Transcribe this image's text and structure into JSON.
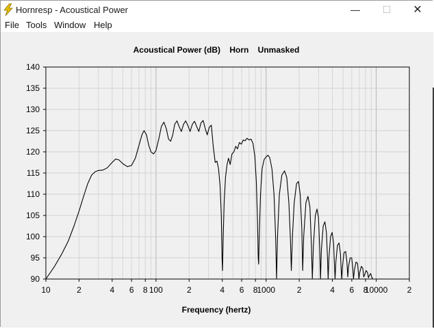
{
  "window": {
    "title": "Hornresp - Acoustical Power",
    "controls": {
      "minimize": "—",
      "maximize": "☐",
      "close": "✕"
    }
  },
  "menu": [
    "File",
    "Tools",
    "Window",
    "Help"
  ],
  "chart_data": {
    "type": "line",
    "title": "Acoustical Power (dB)    Horn    Unmasked",
    "xlabel": "Frequency (hertz)",
    "ylabel": "",
    "x_scale": "log",
    "xlim": [
      10,
      20000
    ],
    "ylim": [
      90,
      140
    ],
    "y_ticks": [
      90,
      95,
      100,
      105,
      110,
      115,
      120,
      125,
      130,
      135,
      140
    ],
    "x_tick_labels": [
      {
        "x": 10,
        "label": "10"
      },
      {
        "x": 20,
        "label": "2"
      },
      {
        "x": 40,
        "label": "4"
      },
      {
        "x": 60,
        "label": "6"
      },
      {
        "x": 80,
        "label": "8"
      },
      {
        "x": 100,
        "label": "100"
      },
      {
        "x": 200,
        "label": "2"
      },
      {
        "x": 400,
        "label": "4"
      },
      {
        "x": 600,
        "label": "6"
      },
      {
        "x": 800,
        "label": "8"
      },
      {
        "x": 1000,
        "label": "1000"
      },
      {
        "x": 2000,
        "label": "2"
      },
      {
        "x": 4000,
        "label": "4"
      },
      {
        "x": 6000,
        "label": "6"
      },
      {
        "x": 8000,
        "label": "8"
      },
      {
        "x": 10000,
        "label": "10000"
      },
      {
        "x": 20000,
        "label": "2"
      }
    ],
    "grid": true,
    "line_color": "#000000",
    "series": [
      {
        "points": [
          [
            10,
            90
          ],
          [
            12,
            93
          ],
          [
            14,
            96
          ],
          [
            16,
            99
          ],
          [
            18,
            102.5
          ],
          [
            20,
            106
          ],
          [
            22,
            109.5
          ],
          [
            24,
            112.5
          ],
          [
            26,
            114.5
          ],
          [
            28,
            115.3
          ],
          [
            30,
            115.6
          ],
          [
            33,
            115.7
          ],
          [
            36,
            116.2
          ],
          [
            40,
            117.5
          ],
          [
            43,
            118.3
          ],
          [
            46,
            118.1
          ],
          [
            50,
            117.2
          ],
          [
            55,
            116.5
          ],
          [
            60,
            116.8
          ],
          [
            65,
            118.5
          ],
          [
            70,
            121.5
          ],
          [
            75,
            124.2
          ],
          [
            78,
            125
          ],
          [
            82,
            124
          ],
          [
            86,
            121.5
          ],
          [
            90,
            120
          ],
          [
            95,
            119.5
          ],
          [
            100,
            120.3
          ],
          [
            106,
            123
          ],
          [
            112,
            126
          ],
          [
            118,
            127
          ],
          [
            124,
            125.5
          ],
          [
            130,
            123
          ],
          [
            136,
            122.5
          ],
          [
            142,
            124
          ],
          [
            148,
            126.5
          ],
          [
            155,
            127.3
          ],
          [
            162,
            126
          ],
          [
            170,
            124.8
          ],
          [
            178,
            126.5
          ],
          [
            186,
            127.3
          ],
          [
            195,
            126.2
          ],
          [
            204,
            124.8
          ],
          [
            214,
            126.5
          ],
          [
            224,
            127.2
          ],
          [
            234,
            126
          ],
          [
            245,
            124.8
          ],
          [
            256,
            126.8
          ],
          [
            268,
            127.4
          ],
          [
            280,
            125.5
          ],
          [
            292,
            124
          ],
          [
            305,
            125.8
          ],
          [
            318,
            126.3
          ],
          [
            332,
            121
          ],
          [
            345,
            117.5
          ],
          [
            358,
            117.8
          ],
          [
            370,
            116
          ],
          [
            382,
            112
          ],
          [
            392,
            105
          ],
          [
            398,
            95
          ],
          [
            402,
            92
          ],
          [
            408,
            100
          ],
          [
            416,
            108
          ],
          [
            428,
            114
          ],
          [
            442,
            117
          ],
          [
            456,
            118.5
          ],
          [
            472,
            117
          ],
          [
            490,
            119.5
          ],
          [
            510,
            120
          ],
          [
            530,
            121.3
          ],
          [
            550,
            120.7
          ],
          [
            572,
            122.2
          ],
          [
            595,
            121.8
          ],
          [
            620,
            122.8
          ],
          [
            645,
            122.6
          ],
          [
            670,
            123.2
          ],
          [
            700,
            122.8
          ],
          [
            730,
            123
          ],
          [
            760,
            122
          ],
          [
            790,
            119
          ],
          [
            815,
            113
          ],
          [
            835,
            104
          ],
          [
            848,
            95
          ],
          [
            856,
            93.5
          ],
          [
            866,
            100
          ],
          [
            890,
            110
          ],
          [
            920,
            116
          ],
          [
            960,
            118.2
          ],
          [
            1000,
            118.8
          ],
          [
            1040,
            119.2
          ],
          [
            1080,
            118.6
          ],
          [
            1130,
            116
          ],
          [
            1180,
            110
          ],
          [
            1220,
            100
          ],
          [
            1245,
            90
          ],
          [
            1270,
            100
          ],
          [
            1320,
            110
          ],
          [
            1390,
            114.5
          ],
          [
            1470,
            115.5
          ],
          [
            1540,
            114
          ],
          [
            1610,
            108
          ],
          [
            1660,
            100
          ],
          [
            1695,
            92
          ],
          [
            1735,
            100
          ],
          [
            1800,
            108
          ],
          [
            1890,
            112.5
          ],
          [
            1970,
            113
          ],
          [
            2040,
            110
          ],
          [
            2110,
            102
          ],
          [
            2150,
            92
          ],
          [
            2195,
            100
          ],
          [
            2300,
            108
          ],
          [
            2400,
            109.5
          ],
          [
            2500,
            107
          ],
          [
            2580,
            98
          ],
          [
            2630,
            90
          ],
          [
            2690,
            98
          ],
          [
            2800,
            105
          ],
          [
            2900,
            106.5
          ],
          [
            2990,
            104.5
          ],
          [
            3070,
            97
          ],
          [
            3120,
            90
          ],
          [
            3180,
            97
          ],
          [
            3300,
            102.5
          ],
          [
            3420,
            103.5
          ],
          [
            3530,
            101
          ],
          [
            3610,
            95
          ],
          [
            3660,
            90
          ],
          [
            3720,
            95
          ],
          [
            3850,
            100
          ],
          [
            3980,
            101
          ],
          [
            4100,
            98.5
          ],
          [
            4180,
            93
          ],
          [
            4230,
            90
          ],
          [
            4300,
            94
          ],
          [
            4450,
            98
          ],
          [
            4600,
            98.5
          ],
          [
            4730,
            96
          ],
          [
            4810,
            92
          ],
          [
            4860,
            90
          ],
          [
            4940,
            93
          ],
          [
            5100,
            96.2
          ],
          [
            5280,
            96.5
          ],
          [
            5420,
            94
          ],
          [
            5520,
            90.5
          ],
          [
            5610,
            93
          ],
          [
            5800,
            95
          ],
          [
            5990,
            95
          ],
          [
            6130,
            92.5
          ],
          [
            6220,
            90
          ],
          [
            6330,
            92
          ],
          [
            6550,
            94
          ],
          [
            6760,
            93.7
          ],
          [
            6890,
            91.5
          ],
          [
            6970,
            90
          ],
          [
            7080,
            91.5
          ],
          [
            7330,
            93
          ],
          [
            7560,
            92.5
          ],
          [
            7700,
            90.5
          ],
          [
            7850,
            91
          ],
          [
            8100,
            92
          ],
          [
            8350,
            91.5
          ],
          [
            8500,
            90.3
          ],
          [
            8650,
            90.8
          ],
          [
            8900,
            91.3
          ],
          [
            9100,
            90.5
          ],
          [
            9300,
            90
          ]
        ]
      }
    ]
  }
}
